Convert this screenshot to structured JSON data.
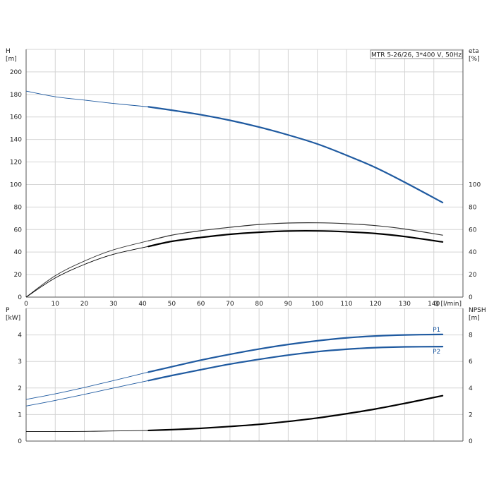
{
  "chart_data": [
    {
      "type": "line",
      "title": "MTR 5-26/26, 3*400 V, 50Hz",
      "xlabel": "Q [l/min]",
      "ylabel_left": "H",
      "ylabel_left_unit": "[m]",
      "ylabel_right": "eta",
      "ylabel_right_unit": "[%]",
      "xlim": [
        0,
        150
      ],
      "xticks": [
        0,
        10,
        20,
        30,
        40,
        50,
        60,
        70,
        80,
        90,
        100,
        110,
        120,
        130,
        140
      ],
      "ylim_left": [
        0,
        220
      ],
      "yticks_left": [
        0,
        20,
        40,
        60,
        80,
        100,
        120,
        140,
        160,
        180,
        200
      ],
      "ylim_right": [
        0,
        220
      ],
      "yticks_right": [
        0,
        20,
        40,
        60,
        80,
        100
      ],
      "grid": true,
      "colors": {
        "head": "#1f5aa0",
        "eta1": "#333333",
        "eta2": "#000000"
      },
      "series": [
        {
          "key": "head",
          "axis": "left",
          "x": [
            0,
            10,
            20,
            30,
            42,
            50,
            60,
            70,
            80,
            90,
            100,
            110,
            120,
            130,
            143
          ],
          "y": [
            183,
            178,
            175,
            172,
            169,
            166,
            162,
            157,
            151,
            144,
            136,
            126,
            115,
            102,
            84
          ]
        },
        {
          "key": "eta1",
          "axis": "right",
          "x": [
            0,
            10,
            20,
            30,
            42,
            50,
            60,
            70,
            80,
            90,
            100,
            110,
            120,
            130,
            143
          ],
          "y": [
            0,
            19,
            32,
            42,
            50,
            55,
            59,
            62,
            64.5,
            65.8,
            66,
            65.2,
            63.5,
            60.5,
            55
          ]
        },
        {
          "key": "eta2",
          "axis": "right",
          "x": [
            0,
            10,
            20,
            30,
            42,
            50,
            60,
            70,
            80,
            90,
            100,
            110,
            120,
            130,
            143
          ],
          "y": [
            0,
            17,
            29,
            38,
            45,
            49.5,
            53,
            55.8,
            57.6,
            58.7,
            58.8,
            58,
            56.5,
            53.8,
            49
          ]
        }
      ]
    },
    {
      "type": "line",
      "xlabel": "",
      "ylabel_left": "P",
      "ylabel_left_unit": "[kW]",
      "ylabel_right": "NPSH",
      "ylabel_right_unit": "[m]",
      "xlim": [
        0,
        150
      ],
      "xticks": [
        0,
        10,
        20,
        30,
        40,
        50,
        60,
        70,
        80,
        90,
        100,
        110,
        120,
        130,
        140
      ],
      "ylim_left": [
        0,
        5
      ],
      "yticks_left": [
        0,
        1,
        2,
        3,
        4
      ],
      "ylim_right": [
        0,
        10
      ],
      "yticks_right": [
        0,
        2,
        4,
        6,
        8
      ],
      "grid": true,
      "colors": {
        "P1": "#1f5aa0",
        "P2": "#1f5aa0",
        "NPSH": "#000000"
      },
      "series": [
        {
          "name": "P1",
          "axis": "left",
          "x": [
            0,
            10,
            20,
            30,
            42,
            50,
            60,
            70,
            80,
            90,
            100,
            110,
            120,
            130,
            143
          ],
          "y": [
            1.57,
            1.78,
            2.02,
            2.28,
            2.6,
            2.8,
            3.05,
            3.27,
            3.47,
            3.64,
            3.78,
            3.89,
            3.96,
            4.0,
            4.02
          ]
        },
        {
          "name": "P2",
          "axis": "left",
          "x": [
            0,
            10,
            20,
            30,
            42,
            50,
            60,
            70,
            80,
            90,
            100,
            110,
            120,
            130,
            143
          ],
          "y": [
            1.32,
            1.53,
            1.76,
            2.0,
            2.28,
            2.47,
            2.69,
            2.9,
            3.08,
            3.24,
            3.37,
            3.46,
            3.52,
            3.55,
            3.56
          ]
        },
        {
          "key": "NPSH",
          "axis": "right",
          "x": [
            0,
            10,
            20,
            30,
            42,
            50,
            60,
            70,
            80,
            90,
            100,
            110,
            120,
            130,
            143
          ],
          "y": [
            0.72,
            0.72,
            0.73,
            0.76,
            0.8,
            0.86,
            0.96,
            1.1,
            1.26,
            1.48,
            1.74,
            2.06,
            2.42,
            2.84,
            3.42
          ]
        }
      ]
    }
  ]
}
